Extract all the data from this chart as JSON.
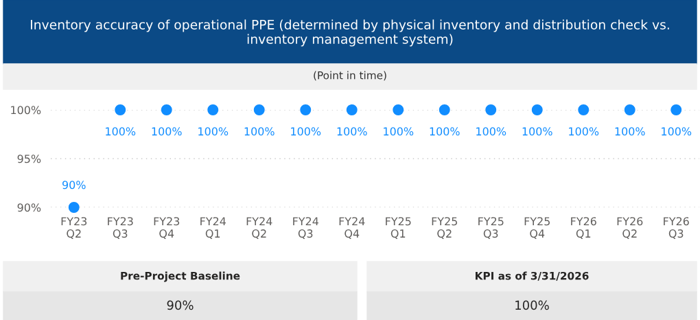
{
  "chart_data": [
    {
      "type": "scatter",
      "title": "Inventory accuracy of operational PPE (determined by physical inventory and distribution check vs. inventory management system)",
      "subtitle": "(Point in time)",
      "categories": [
        "FY23\nQ2",
        "FY23\nQ3",
        "FY23\nQ4",
        "FY24\nQ1",
        "FY24\nQ2",
        "FY24\nQ3",
        "FY24\nQ4",
        "FY25\nQ1",
        "FY25\nQ2",
        "FY25\nQ3",
        "FY25\nQ4",
        "FY26\nQ1",
        "FY26\nQ2",
        "FY26\nQ3"
      ],
      "series": [
        {
          "color": "#118dff",
          "values": [
            90,
            100,
            100,
            100,
            100,
            100,
            100,
            100,
            100,
            100,
            100,
            100,
            100,
            100
          ],
          "value_labels": [
            "90%",
            "100%",
            "100%",
            "100%",
            "100%",
            "100%",
            "100%",
            "100%",
            "100%",
            "100%",
            "100%",
            "100%",
            "100%",
            "100%"
          ]
        }
      ],
      "ylim": [
        90,
        100
      ],
      "yticks": [
        {
          "value": 90,
          "label": "90%"
        },
        {
          "value": 95,
          "label": "95%"
        },
        {
          "value": 100,
          "label": "100%"
        }
      ],
      "grid": "y",
      "marker": "circle"
    },
    {
      "type": "other",
      "annotations": [
        "Pre-Project Baseline",
        "90%",
        "KPI as of 3/31/2026",
        "100%"
      ]
    }
  ]
}
